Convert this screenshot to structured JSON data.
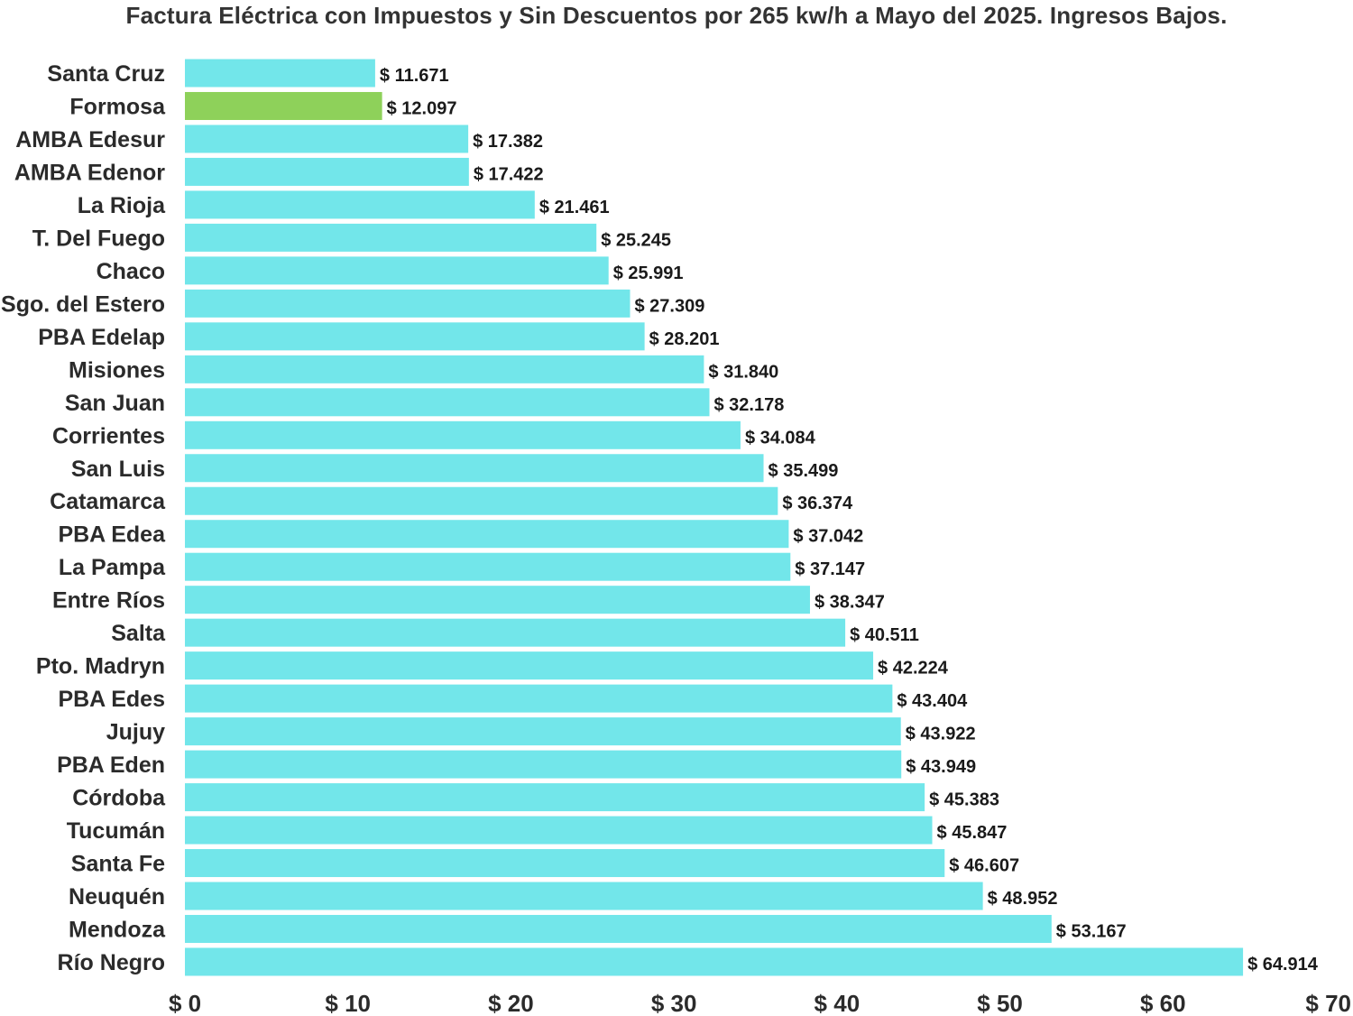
{
  "chart_data": {
    "type": "bar",
    "orientation": "horizontal",
    "title": "Factura Eléctrica con Impuestos y Sin Descuentos por 265 kw/h a Mayo del 2025. Ingresos Bajos.",
    "categories": [
      "Santa Cruz",
      "Formosa",
      "AMBA Edesur",
      "AMBA Edenor",
      "La Rioja",
      "T. Del Fuego",
      "Chaco",
      "Sgo. del Estero",
      "PBA Edelap",
      "Misiones",
      "San Juan",
      "Corrientes",
      "San Luis",
      "Catamarca",
      "PBA Edea",
      "La Pampa",
      "Entre Ríos",
      "Salta",
      "Pto. Madryn",
      "PBA Edes",
      "Jujuy",
      "PBA Eden",
      "Córdoba",
      "Tucumán",
      "Santa Fe",
      "Neuquén",
      "Mendoza",
      "Río Negro"
    ],
    "values": [
      11671,
      12097,
      17382,
      17422,
      21461,
      25245,
      25991,
      27309,
      28201,
      31840,
      32178,
      34084,
      35499,
      36374,
      37042,
      37147,
      38347,
      40511,
      42224,
      43404,
      43922,
      43949,
      45383,
      45847,
      46607,
      48952,
      53167,
      64914
    ],
    "value_labels": [
      "$ 11.671",
      "$ 12.097",
      "$ 17.382",
      "$ 17.422",
      "$ 21.461",
      "$ 25.245",
      "$ 25.991",
      "$ 27.309",
      "$ 28.201",
      "$ 31.840",
      "$ 32.178",
      "$ 34.084",
      "$ 35.499",
      "$ 36.374",
      "$ 37.042",
      "$ 37.147",
      "$ 38.347",
      "$ 40.511",
      "$ 42.224",
      "$ 43.404",
      "$ 43.922",
      "$ 43.949",
      "$ 45.383",
      "$ 45.847",
      "$ 46.607",
      "$ 48.952",
      "$ 53.167",
      "$ 64.914"
    ],
    "highlight_category": "Formosa",
    "xlim": [
      0,
      70000
    ],
    "x_ticks": [
      0,
      10000,
      20000,
      30000,
      40000,
      50000,
      60000,
      70000
    ],
    "x_tick_labels": [
      "$ 0",
      "$ 10",
      "$ 20",
      "$ 30",
      "$ 40",
      "$ 50",
      "$ 60",
      "$ 70"
    ],
    "grid": false,
    "legend": "none",
    "colors": {
      "bar": "#72e6ea",
      "highlight": "#8ed15a"
    }
  }
}
